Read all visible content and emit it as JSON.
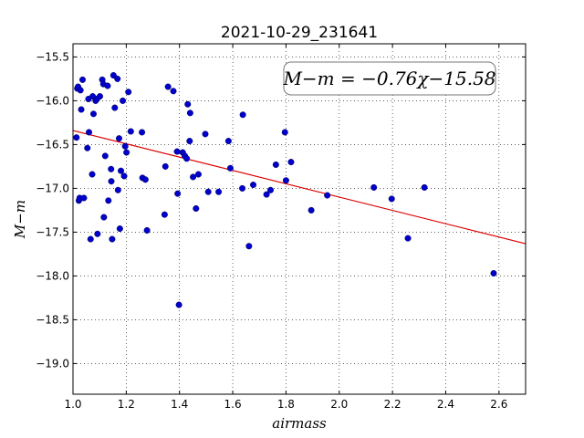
{
  "chart_data": {
    "type": "scatter",
    "title": "2021-10-29_231641",
    "xlabel": "airmass",
    "ylabel": "M−m",
    "xlim": [
      1.0,
      2.7
    ],
    "ylim": [
      -19.35,
      -15.35
    ],
    "y_inverted": true,
    "grid": true,
    "xticks": [
      1.0,
      1.2,
      1.4,
      1.6,
      1.8,
      2.0,
      2.2,
      2.4,
      2.6
    ],
    "xtick_labels": [
      "1.0",
      "1.2",
      "1.4",
      "1.6",
      "1.8",
      "2.0",
      "2.2",
      "2.4",
      "2.6"
    ],
    "yticks": [
      -15.5,
      -16.0,
      -16.5,
      -17.0,
      -17.5,
      -18.0,
      -18.5,
      -19.0
    ],
    "ytick_labels": [
      "−15.5",
      "−16.0",
      "−16.5",
      "−17.0",
      "−17.5",
      "−18.0",
      "−18.5",
      "−19.0"
    ],
    "annotation": "M−m = −0.76χ−15.58",
    "fit": {
      "slope": -0.76,
      "intercept": -15.58,
      "x_range": [
        1.0,
        2.7
      ],
      "color": "#dd0000"
    },
    "point_color": "#0000cc",
    "series": [
      {
        "points": [
          [
            1.013,
            -16.42
          ],
          [
            1.016,
            -15.86
          ],
          [
            1.019,
            -15.84
          ],
          [
            1.022,
            -17.14
          ],
          [
            1.025,
            -17.11
          ],
          [
            1.028,
            -15.88
          ],
          [
            1.031,
            -16.1
          ],
          [
            1.036,
            -15.76
          ],
          [
            1.041,
            -17.11
          ],
          [
            1.054,
            -16.54
          ],
          [
            1.058,
            -15.98
          ],
          [
            1.06,
            -16.36
          ],
          [
            1.066,
            -17.58
          ],
          [
            1.072,
            -16.84
          ],
          [
            1.074,
            -15.95
          ],
          [
            1.077,
            -16.15
          ],
          [
            1.085,
            -16.0
          ],
          [
            1.09,
            -15.98
          ],
          [
            1.092,
            -17.52
          ],
          [
            1.101,
            -15.95
          ],
          [
            1.11,
            -15.76
          ],
          [
            1.114,
            -15.81
          ],
          [
            1.116,
            -17.33
          ],
          [
            1.121,
            -16.63
          ],
          [
            1.13,
            -15.83
          ],
          [
            1.133,
            -17.14
          ],
          [
            1.143,
            -16.78
          ],
          [
            1.144,
            -16.92
          ],
          [
            1.147,
            -17.58
          ],
          [
            1.152,
            -15.71
          ],
          [
            1.157,
            -16.08
          ],
          [
            1.167,
            -15.75
          ],
          [
            1.169,
            -17.02
          ],
          [
            1.173,
            -16.43
          ],
          [
            1.176,
            -17.46
          ],
          [
            1.18,
            -16.8
          ],
          [
            1.187,
            -16.0
          ],
          [
            1.192,
            -16.86
          ],
          [
            1.196,
            -16.52
          ],
          [
            1.201,
            -16.59
          ],
          [
            1.208,
            -15.9
          ],
          [
            1.217,
            -16.35
          ],
          [
            1.259,
            -16.36
          ],
          [
            1.261,
            -16.88
          ],
          [
            1.272,
            -16.9
          ],
          [
            1.278,
            -17.48
          ],
          [
            1.344,
            -17.3
          ],
          [
            1.347,
            -16.75
          ],
          [
            1.357,
            -15.84
          ],
          [
            1.377,
            -15.89
          ],
          [
            1.391,
            -16.58
          ],
          [
            1.393,
            -17.06
          ],
          [
            1.398,
            -18.33
          ],
          [
            1.412,
            -16.59
          ],
          [
            1.42,
            -16.63
          ],
          [
            1.427,
            -16.66
          ],
          [
            1.431,
            -16.04
          ],
          [
            1.438,
            -16.46
          ],
          [
            1.44,
            -16.14
          ],
          [
            1.451,
            -16.87
          ],
          [
            1.462,
            -17.23
          ],
          [
            1.471,
            -16.84
          ],
          [
            1.497,
            -16.38
          ],
          [
            1.508,
            -17.04
          ],
          [
            1.547,
            -17.04
          ],
          [
            1.584,
            -16.46
          ],
          [
            1.591,
            -16.77
          ],
          [
            1.636,
            -17.0
          ],
          [
            1.638,
            -16.16
          ],
          [
            1.661,
            -17.66
          ],
          [
            1.677,
            -16.96
          ],
          [
            1.727,
            -17.07
          ],
          [
            1.742,
            -17.02
          ],
          [
            1.762,
            -16.73
          ],
          [
            1.796,
            -16.36
          ],
          [
            1.8,
            -16.91
          ],
          [
            1.819,
            -16.7
          ],
          [
            1.895,
            -17.25
          ],
          [
            1.955,
            -17.08
          ],
          [
            2.13,
            -16.99
          ],
          [
            2.197,
            -17.12
          ],
          [
            2.258,
            -17.57
          ],
          [
            2.32,
            -16.99
          ],
          [
            2.58,
            -17.97
          ]
        ]
      }
    ]
  }
}
